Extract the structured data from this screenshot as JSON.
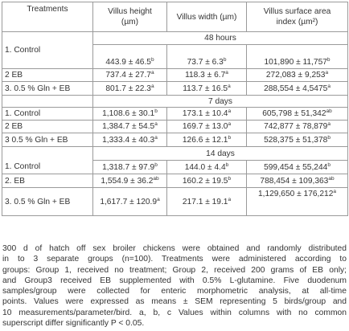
{
  "headers": {
    "treatments": "Treatments",
    "villus_height_line1": "Villus height",
    "villus_height_line2": "(µm)",
    "villus_width": "Villus width (µm)",
    "villus_surface_line1": "Villus surface area",
    "villus_surface_line2": "index (µm²)"
  },
  "periods": [
    "48 hours",
    "7 days",
    "14 days"
  ],
  "rows": [
    [
      {
        "treatment": "1. Control",
        "h": "443.9 ± 46.5",
        "hs": "b",
        "w": "73.7 ± 6.3",
        "ws": "b",
        "s": "101,890 ± 11,757",
        "ss": "b"
      },
      {
        "treatment": "2 EB",
        "h": "737.4 ± 27.7",
        "hs": "a",
        "w": "118.3 ± 6.7",
        "ws": "a",
        "s": "272,083 ± 9,253",
        "ss": "a"
      },
      {
        "treatment": "3. 0.5 % Gln + EB",
        "h": "801.7 ± 22.3",
        "hs": "a",
        "w": "113.7 ± 16.5",
        "ws": "a",
        "s": "288,554 ± 4,5475",
        "ss": "a"
      }
    ],
    [
      {
        "treatment": "1. Control",
        "h": "1,108.6 ± 30.1",
        "hs": "b",
        "w": "173.1 ± 10.4",
        "ws": "a",
        "s": "605,798 ± 51,342",
        "ss": "ab"
      },
      {
        "treatment": "2 EB",
        "h": "1,384.7 ± 54.5",
        "hs": "a",
        "w": "169.7 ± 13.0",
        "ws": "a",
        "s": "742,877 ± 78,879",
        "ss": "a"
      },
      {
        "treatment": "3 0.5 % Gln + EB",
        "h": "1,333.4 ± 40.3",
        "hs": "a",
        "w": "126.6 ± 12.1",
        "ws": "b",
        "s": "528,375 ± 51,378",
        "ss": "b"
      }
    ],
    [
      {
        "treatment": "1. Control",
        "h": "1,318.7 ± 97.9",
        "hs": "b",
        "w": "144.0 ± 4.4",
        "ws": "b",
        "s": "599,454 ± 55,244",
        "ss": "b"
      },
      {
        "treatment": "2. EB",
        "h": "1,554.9 ± 36.2",
        "hs": "ab",
        "w": "160.2 ± 19.5",
        "ws": "b",
        "s": "788,454 ± 109,363",
        "ss": "ab"
      },
      {
        "treatment": "3. 0.5 % Gln + EB",
        "h": "1,617.7 ± 120.9",
        "hs": "a",
        "w": "217.1 ± 19.1",
        "ws": "a",
        "s": "1,129,650 ± 176,212",
        "ss": "a"
      }
    ]
  ],
  "footnote": [
    "300 d of hatch off sex broiler chickens were obtained and randomly distributed",
    "in to 3 separate groups (n=100). Treatments were administered according to",
    "groups: Group 1, received no treatment; Group 2, received 200 grams of EB only;",
    "and Group3 received EB supplemented with 0.5% L-glutamine. Five duodenum",
    "samples/group were collected for enteric morphometric analysis, at all-time",
    "points. Values were expressed as means ± SEM representing 5 birds/group and",
    "10 measurements/parameter/bird. a, b, c Values within columns with no common",
    "superscript differ significantly P < 0.05."
  ]
}
